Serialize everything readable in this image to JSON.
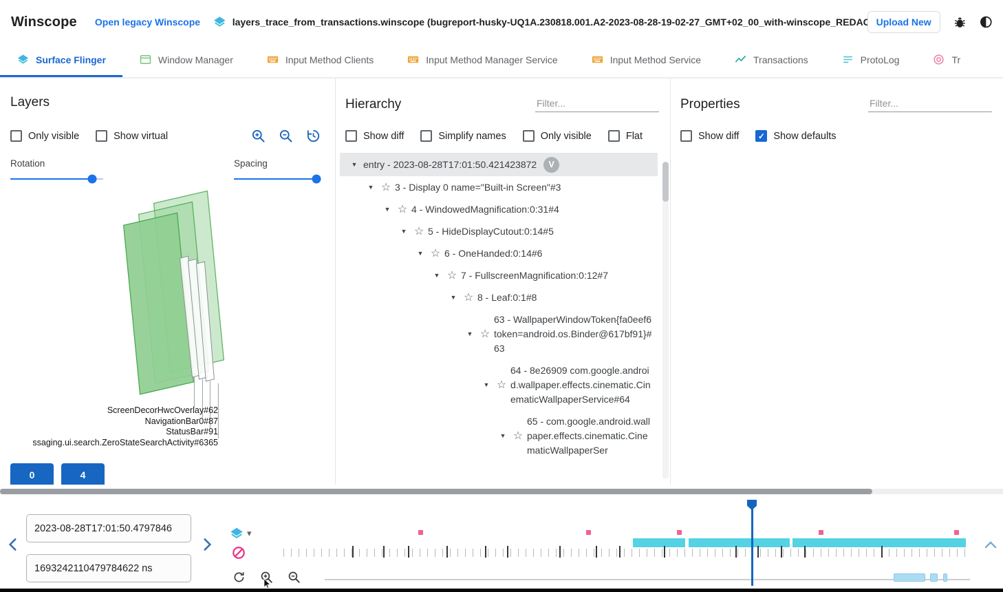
{
  "colors": {
    "accent_blue": "#1a73e8",
    "tab_active": "#1967d2",
    "button_blue": "#1766c2",
    "checkbox_blue": "#1967d2",
    "timeline_cyan": "#55d2e4",
    "timeline_pink": "#f06292",
    "timeline_lightblue": "#aadcf2",
    "cursor_blue": "#1565c0",
    "layer_green_fill": "#8fce91",
    "layer_green_stroke": "#49a84e"
  },
  "header": {
    "app_title": "Winscope",
    "legacy_link": "Open legacy Winscope",
    "trace_file": "layers_trace_from_transactions.winscope (bugreport-husky-UQ1A.230818.001.A2-2023-08-28-19-02-27_GMT+02_00_with-winscope_REDACTED.zip)",
    "upload_button": "Upload New"
  },
  "tabs": [
    {
      "label": "Surface Flinger",
      "icon": "layers-icon",
      "active": true
    },
    {
      "label": "Window Manager",
      "icon": "window-icon",
      "active": false
    },
    {
      "label": "Input Method Clients",
      "icon": "keyboard-icon",
      "active": false
    },
    {
      "label": "Input Method Manager Service",
      "icon": "keyboard-icon",
      "active": false
    },
    {
      "label": "Input Method Service",
      "icon": "keyboard-icon",
      "active": false
    },
    {
      "label": "Transactions",
      "icon": "chart-icon",
      "active": false
    },
    {
      "label": "ProtoLog",
      "icon": "list-icon",
      "active": false
    },
    {
      "label": "Tr",
      "icon": "tag-icon",
      "active": false
    }
  ],
  "layers_panel": {
    "title": "Layers",
    "checkboxes": [
      {
        "label": "Only visible",
        "checked": false
      },
      {
        "label": "Show virtual",
        "checked": false
      }
    ],
    "tools": [
      "zoom-in-icon",
      "zoom-out-icon",
      "restore-history-icon"
    ],
    "rotation_label": "Rotation",
    "rotation_value_pct": 88,
    "spacing_label": "Spacing",
    "spacing_value_pct": 97,
    "layer_labels": [
      "ScreenDecorHwcOverlay#62",
      "NavigationBar0#87",
      "StatusBar#91",
      "ssaging.ui.search.ZeroStateSearchActivity#6365"
    ],
    "display_buttons": [
      "0",
      "4"
    ]
  },
  "hierarchy_panel": {
    "title": "Hierarchy",
    "filter_placeholder": "Filter...",
    "checkboxes": [
      {
        "label": "Show diff",
        "checked": false
      },
      {
        "label": "Simplify names",
        "checked": false
      },
      {
        "label": "Only visible",
        "checked": false
      },
      {
        "label": "Flat",
        "checked": false
      }
    ],
    "tree": [
      {
        "text": "entry - 2023-08-28T17:01:50.421423872",
        "indent": 0,
        "star": false,
        "badge": "V",
        "selected": true
      },
      {
        "text": "3 - Display 0 name=\"Built-in Screen\"#3",
        "indent": 1,
        "star": true
      },
      {
        "text": "4 - WindowedMagnification:0:31#4",
        "indent": 2,
        "star": true
      },
      {
        "text": "5 - HideDisplayCutout:0:14#5",
        "indent": 3,
        "star": true
      },
      {
        "text": "6 - OneHanded:0:14#6",
        "indent": 4,
        "star": true
      },
      {
        "text": "7 - FullscreenMagnification:0:12#7",
        "indent": 5,
        "star": true
      },
      {
        "text": "8 - Leaf:0:1#8",
        "indent": 6,
        "star": true
      },
      {
        "text": "63 - WallpaperWindowToken{fa0eef6 token=android.os.Binder@617bf91}#63",
        "indent": 7,
        "star": true
      },
      {
        "text": "64 - 8e26909 com.google.android.wallpaper.effects.cinematic.CinematicWallpaperService#64",
        "indent": 8,
        "star": true
      },
      {
        "text": "65 - com.google.android.wallpaper.effects.cinematic.CinematicWallpaperSer",
        "indent": 9,
        "star": true
      }
    ]
  },
  "properties_panel": {
    "title": "Properties",
    "filter_placeholder": "Filter...",
    "checkboxes": [
      {
        "label": "Show diff",
        "checked": false
      },
      {
        "label": "Show defaults",
        "checked": true
      }
    ]
  },
  "timeline": {
    "timestamp_human": "2023-08-28T17:01:50.4797846",
    "timestamp_ns": "1693242110479784622 ns",
    "cursor_pct": 68.3,
    "pink_markers_pct": [
      20.1,
      44.5,
      57.7,
      78.3,
      98.0
    ],
    "cyan_segments_pct": [
      [
        51.0,
        58.6
      ],
      [
        59.1,
        73.8
      ],
      [
        74.2,
        99.4
      ]
    ],
    "black_ticks_pct": [
      10.2,
      14.7,
      18.3,
      23.9,
      29.5,
      32.7,
      40.3,
      45.6,
      49.0,
      55.5,
      65.9,
      69.1,
      72.5,
      75.9,
      87.1
    ],
    "txn_segments_pct": [
      [
        88.9,
        93.5
      ],
      [
        94.2,
        95.3
      ],
      [
        96.1,
        96.7
      ]
    ]
  }
}
